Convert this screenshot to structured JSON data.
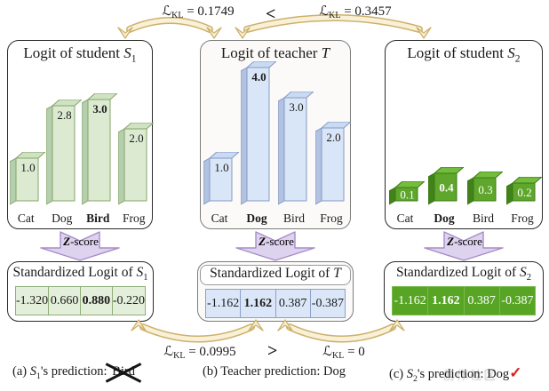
{
  "kl": {
    "top_left": {
      "sym": "ℒ",
      "sub": "KL",
      "eq": " = 0.1749"
    },
    "top_cmp": "<",
    "top_right": {
      "sym": "ℒ",
      "sub": "KL",
      "eq": " = 0.3457"
    },
    "bottom_left": {
      "sym": "ℒ",
      "sub": "KL",
      "eq": " = 0.0995"
    },
    "bottom_cmp": ">",
    "bottom_right": {
      "sym": "ℒ",
      "sub": "KL",
      "eq": " = 0"
    }
  },
  "zscore": {
    "z": "Z",
    "rest": "-score"
  },
  "panels": [
    {
      "title_prefix": "Logit of student ",
      "symbol": "S",
      "symbol_sub": "1",
      "categories": [
        "Cat",
        "Dog",
        "Bird",
        "Frog"
      ],
      "values": [
        1.0,
        2.8,
        3.0,
        2.0
      ],
      "value_labels": [
        "1.0",
        "2.8",
        "3.0",
        "2.0"
      ],
      "bold_index": 2,
      "colors": {
        "face": "#dcead2",
        "side": "#b5cfae",
        "top": "#cfe3c2",
        "stroke": "#85a468",
        "text": "#1a1a1a"
      }
    },
    {
      "title_prefix": "Logit of teacher ",
      "symbol": "T",
      "symbol_sub": "",
      "categories": [
        "Cat",
        "Dog",
        "Bird",
        "Frog"
      ],
      "values": [
        1.0,
        4.0,
        3.0,
        2.0
      ],
      "value_labels": [
        "1.0",
        "4.0",
        "3.0",
        "2.0"
      ],
      "bold_index": 1,
      "colors": {
        "face": "#d9e6f8",
        "side": "#b2c3e2",
        "top": "#c9daf2",
        "stroke": "#8599c2",
        "text": "#1a1a1a"
      }
    },
    {
      "title_prefix": "Logit of student ",
      "symbol": "S",
      "symbol_sub": "2",
      "categories": [
        "Cat",
        "Dog",
        "Bird",
        "Frog"
      ],
      "values": [
        0.1,
        0.4,
        0.3,
        0.2
      ],
      "value_labels": [
        "0.1",
        "0.4",
        "0.3",
        "0.2"
      ],
      "bold_index": 1,
      "colors": {
        "face": "#5ea62c",
        "side": "#41821a",
        "top": "#74bd3c",
        "stroke": "#3c7a14",
        "text": "#ffffff"
      }
    }
  ],
  "standardized": [
    {
      "title_prefix": "Standardized Logit of ",
      "symbol": "S",
      "symbol_sub": "1",
      "cells": [
        "-1.320",
        "0.660",
        "0.880",
        "-0.220"
      ],
      "bold_index": 2,
      "colors": {
        "bg": "#e4efdb",
        "border": "#8fae77",
        "text": "#1a1a1a"
      }
    },
    {
      "title_prefix": "Standardized Logit of ",
      "symbol": "T",
      "symbol_sub": "",
      "cells": [
        "-1.162",
        "1.162",
        "0.387",
        "-0.387"
      ],
      "bold_index": 1,
      "colors": {
        "bg": "#dbe7f8",
        "border": "#8ba1c9",
        "text": "#1a1a1a"
      }
    },
    {
      "title_prefix": "Standardized Logit of ",
      "symbol": "S",
      "symbol_sub": "2",
      "cells": [
        "-1.162",
        "1.162",
        "0.387",
        "-0.387"
      ],
      "bold_index": 1,
      "colors": {
        "bg": "#58a425",
        "border": "#7ab94d",
        "text": "#ffffff"
      }
    }
  ],
  "captions": {
    "a_prefix": "(a) ",
    "a_symbol": "S",
    "a_sub": "1",
    "a_text": "'s prediction: ",
    "a_crossed": "Bird",
    "b": "(b) Teacher prediction: Dog",
    "c_prefix": "(c) ",
    "c_symbol": "S",
    "c_sub": "2",
    "c_text": "'s prediction: Dog",
    "c_check": "✓",
    "watermark": "创作社区"
  },
  "accent_colors": {
    "arrow_fill": "#f8f1d8",
    "arrow_stroke": "#cdb06a",
    "zscore_fill": "#ded3ee",
    "zscore_stroke": "#a78cc8",
    "check_red": "#dd1f1f"
  }
}
